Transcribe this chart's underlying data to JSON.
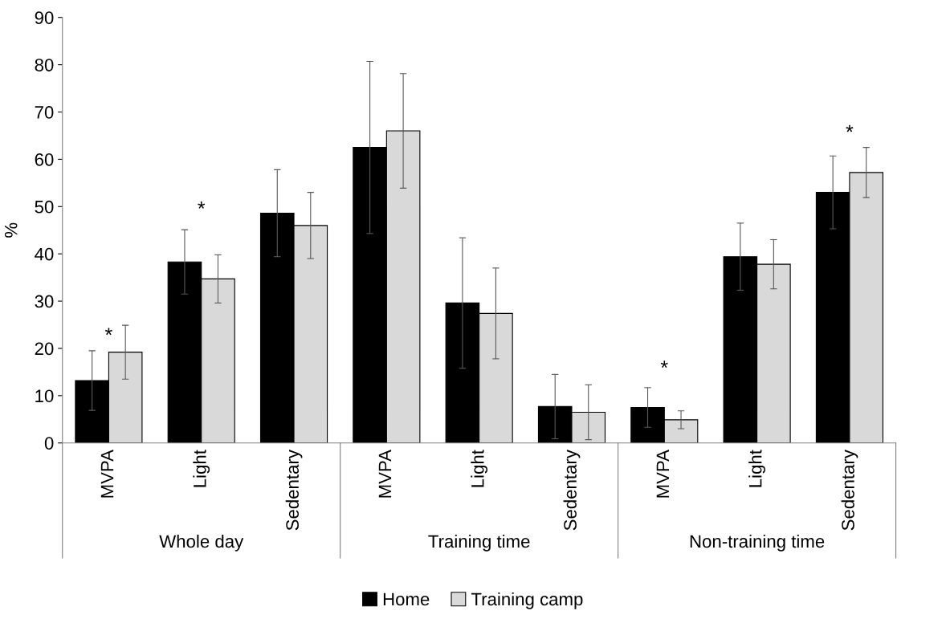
{
  "chart_data": {
    "type": "bar",
    "ylabel": "%",
    "categories": [
      "MVPA",
      "Light",
      "Sedentary",
      "MVPA",
      "Light",
      "Sedentary",
      "MVPA",
      "Light",
      "Sedentary"
    ],
    "ylim": [
      0,
      90
    ],
    "yticks": [
      0,
      10,
      20,
      30,
      40,
      50,
      60,
      70,
      80,
      90
    ],
    "grid": false,
    "legend": "bottom",
    "series": [
      {
        "name": "Home",
        "color": "#000000",
        "values": [
          13.2,
          38.3,
          48.6,
          62.5,
          29.6,
          7.7,
          7.5,
          39.4,
          53.0
        ],
        "errors": [
          6.3,
          6.8,
          9.2,
          18.2,
          13.8,
          6.8,
          4.2,
          7.1,
          7.7
        ]
      },
      {
        "name": "Training camp",
        "color": "#d9d9d9",
        "values": [
          19.2,
          34.7,
          46.0,
          66.0,
          27.4,
          6.5,
          4.9,
          37.8,
          57.2
        ],
        "errors": [
          5.7,
          5.1,
          7.0,
          12.1,
          9.6,
          5.8,
          1.9,
          5.2,
          5.3
        ]
      }
    ],
    "annotations": [
      "*",
      "*",
      "*",
      "*",
      "Whole day",
      "Training time",
      "Non-training time"
    ]
  }
}
